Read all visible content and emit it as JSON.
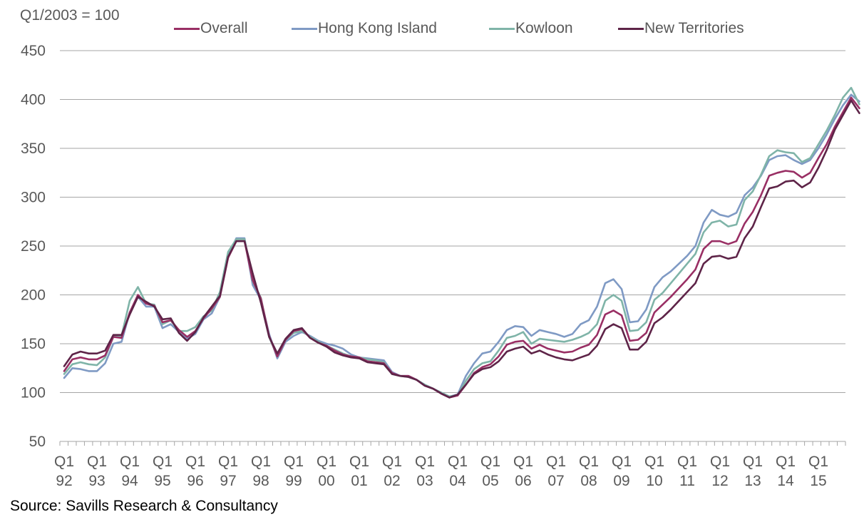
{
  "chart_data": {
    "type": "line",
    "subtitle": "Q1/2003 = 100",
    "source": "Source: Savills Research & Consultancy",
    "ylim": [
      50,
      450
    ],
    "yticks": [
      50,
      100,
      150,
      200,
      250,
      300,
      350,
      400,
      450
    ],
    "x_labels": [
      {
        "q": "Q1",
        "yr": "92"
      },
      {
        "q": "Q1",
        "yr": "93"
      },
      {
        "q": "Q1",
        "yr": "94"
      },
      {
        "q": "Q1",
        "yr": "95"
      },
      {
        "q": "Q1",
        "yr": "96"
      },
      {
        "q": "Q1",
        "yr": "97"
      },
      {
        "q": "Q1",
        "yr": "98"
      },
      {
        "q": "Q1",
        "yr": "99"
      },
      {
        "q": "Q1",
        "yr": "00"
      },
      {
        "q": "Q1",
        "yr": "01"
      },
      {
        "q": "Q1",
        "yr": "02"
      },
      {
        "q": "Q1",
        "yr": "03"
      },
      {
        "q": "Q1",
        "yr": "04"
      },
      {
        "q": "Q1",
        "yr": "05"
      },
      {
        "q": "Q1",
        "yr": "06"
      },
      {
        "q": "Q1",
        "yr": "07"
      },
      {
        "q": "Q1",
        "yr": "08"
      },
      {
        "q": "Q1",
        "yr": "09"
      },
      {
        "q": "Q1",
        "yr": "10"
      },
      {
        "q": "Q1",
        "yr": "11"
      },
      {
        "q": "Q1",
        "yr": "12"
      },
      {
        "q": "Q1",
        "yr": "13"
      },
      {
        "q": "Q1",
        "yr": "14"
      },
      {
        "q": "Q1",
        "yr": "15"
      }
    ],
    "quarters": 96,
    "series": [
      {
        "name": "Hong Kong Island",
        "color": "#7f9ac4",
        "values": [
          115,
          125,
          124,
          122,
          122,
          130,
          150,
          152,
          182,
          198,
          188,
          188,
          166,
          170,
          162,
          155,
          160,
          175,
          181,
          198,
          240,
          258,
          258,
          210,
          195,
          160,
          135,
          152,
          158,
          162,
          158,
          153,
          150,
          148,
          145,
          139,
          136,
          135,
          134,
          133,
          121,
          117,
          117,
          113,
          108,
          104,
          100,
          96,
          98,
          117,
          130,
          140,
          142,
          152,
          164,
          168,
          167,
          158,
          164,
          162,
          160,
          157,
          160,
          170,
          174,
          188,
          212,
          216,
          206,
          172,
          173,
          185,
          208,
          218,
          224,
          232,
          240,
          250,
          274,
          287,
          282,
          280,
          284,
          302,
          310,
          322,
          338,
          342,
          343,
          338,
          334,
          338,
          350,
          364,
          380,
          394,
          405,
          398
        ]
      },
      {
        "name": "Kowloon",
        "color": "#7fb4a8",
        "values": [
          119,
          129,
          131,
          129,
          128,
          136,
          157,
          158,
          194,
          208,
          191,
          190,
          170,
          174,
          163,
          163,
          167,
          178,
          184,
          203,
          244,
          257,
          257,
          214,
          197,
          157,
          137,
          154,
          161,
          163,
          157,
          152,
          148,
          144,
          140,
          137,
          136,
          134,
          133,
          131,
          119,
          117,
          116,
          113,
          108,
          104,
          100,
          96,
          97,
          112,
          124,
          130,
          132,
          143,
          156,
          158,
          162,
          150,
          155,
          154,
          153,
          152,
          154,
          157,
          161,
          170,
          194,
          200,
          194,
          163,
          164,
          172,
          195,
          202,
          212,
          222,
          232,
          242,
          264,
          274,
          276,
          270,
          272,
          297,
          306,
          323,
          342,
          348,
          346,
          345,
          336,
          340,
          354,
          368,
          384,
          402,
          412,
          395
        ]
      },
      {
        "name": "Overall",
        "color": "#992f64",
        "values": [
          122,
          134,
          136,
          134,
          134,
          138,
          157,
          156,
          182,
          200,
          191,
          189,
          172,
          174,
          164,
          157,
          163,
          176,
          186,
          198,
          238,
          255,
          255,
          215,
          196,
          158,
          137,
          154,
          163,
          165,
          156,
          151,
          148,
          143,
          139,
          137,
          136,
          132,
          131,
          130,
          120,
          117,
          117,
          113,
          107,
          104,
          99,
          95,
          97,
          108,
          120,
          126,
          129,
          137,
          149,
          152,
          153,
          145,
          149,
          145,
          143,
          141,
          142,
          146,
          149,
          159,
          180,
          184,
          179,
          153,
          154,
          161,
          182,
          190,
          198,
          207,
          216,
          226,
          247,
          255,
          255,
          252,
          255,
          273,
          285,
          302,
          322,
          325,
          327,
          326,
          320,
          325,
          340,
          354,
          372,
          387,
          402,
          391
        ]
      },
      {
        "name": "New Territories",
        "color": "#5e2448",
        "values": [
          127,
          139,
          142,
          140,
          140,
          143,
          159,
          159,
          180,
          198,
          193,
          188,
          175,
          176,
          161,
          153,
          162,
          177,
          188,
          199,
          239,
          255,
          255,
          222,
          192,
          157,
          140,
          155,
          164,
          166,
          156,
          151,
          147,
          141,
          138,
          136,
          135,
          131,
          130,
          129,
          119,
          117,
          116,
          113,
          107,
          104,
          99,
          95,
          98,
          108,
          119,
          124,
          126,
          132,
          142,
          145,
          147,
          140,
          143,
          139,
          136,
          134,
          133,
          136,
          139,
          148,
          165,
          170,
          166,
          144,
          144,
          152,
          171,
          177,
          185,
          194,
          203,
          212,
          232,
          239,
          240,
          237,
          239,
          258,
          270,
          290,
          309,
          311,
          316,
          317,
          310,
          315,
          330,
          348,
          369,
          384,
          399,
          386
        ]
      }
    ],
    "legend": [
      {
        "name": "Overall",
        "color": "#992f64"
      },
      {
        "name": "Hong Kong Island",
        "color": "#7f9ac4"
      },
      {
        "name": "Kowloon",
        "color": "#7fb4a8"
      },
      {
        "name": "New Territories",
        "color": "#5e2448"
      }
    ]
  }
}
